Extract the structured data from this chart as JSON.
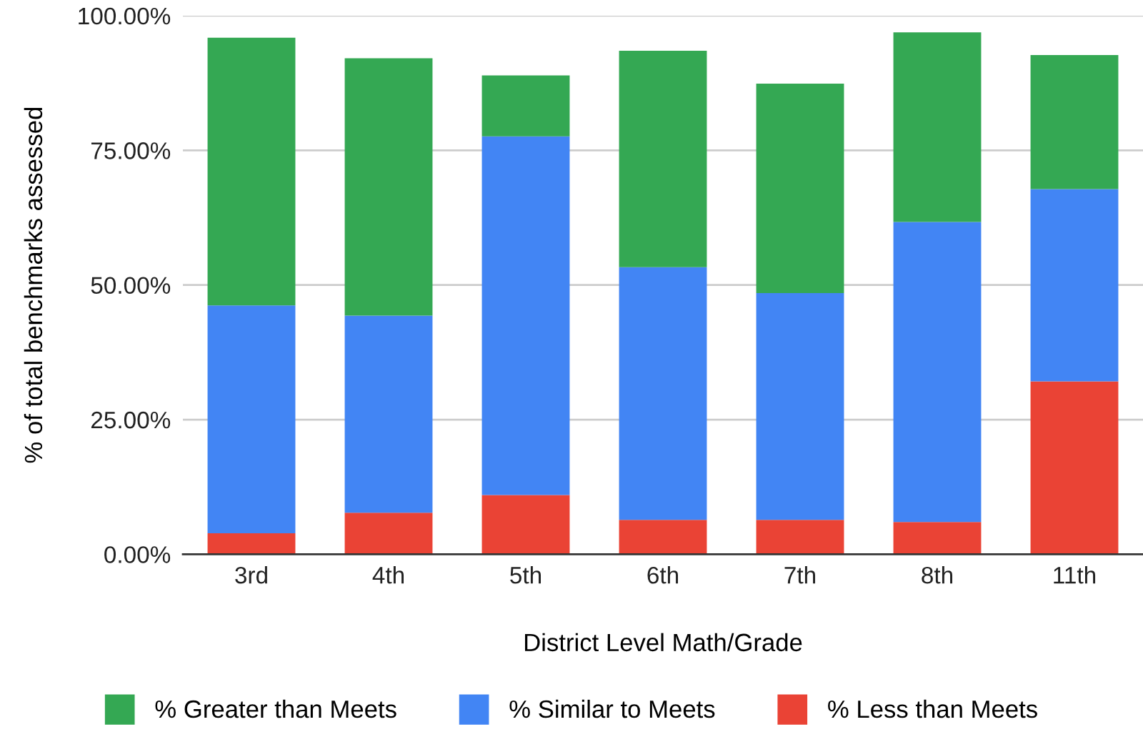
{
  "chart_data": {
    "type": "bar",
    "stacked": true,
    "xlabel": "District Level Math/Grade",
    "ylabel": "% of total benchmarks assessed",
    "categories": [
      "3rd",
      "4th",
      "5th",
      "6th",
      "7th",
      "8th",
      "11th"
    ],
    "series": [
      {
        "name": "% Less than Meets",
        "color": "#ea4335",
        "values": [
          3.9,
          7.7,
          11.0,
          6.4,
          6.4,
          6.0,
          32.1
        ]
      },
      {
        "name": "% Similar to Meets",
        "color": "#4285f4",
        "values": [
          42.3,
          36.6,
          66.6,
          46.9,
          42.1,
          55.7,
          35.7
        ]
      },
      {
        "name": "% Greater than Meets",
        "color": "#34a853",
        "values": [
          49.7,
          47.8,
          11.3,
          40.2,
          38.9,
          35.2,
          24.9
        ]
      }
    ],
    "ylim": [
      0,
      100
    ],
    "yticks": [
      {
        "value": 0,
        "label": "0.00%"
      },
      {
        "value": 25,
        "label": "25.00%"
      },
      {
        "value": 50,
        "label": "50.00%"
      },
      {
        "value": 75,
        "label": "75.00%"
      },
      {
        "value": 100,
        "label": "100.00%"
      }
    ],
    "grid": "y",
    "legend": "bottom"
  }
}
